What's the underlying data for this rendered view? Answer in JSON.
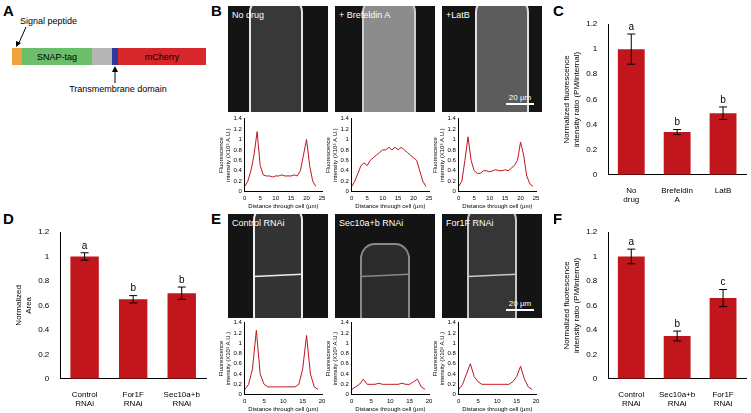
{
  "diagram": {
    "panel": "A",
    "labels": {
      "signal": "Signal peptide",
      "snap": "SNAP-tag",
      "tm": "Transmembrane domain",
      "mcherry": "mCherry"
    }
  },
  "micrographs": [
    {
      "panel": "B",
      "titles": [
        "No drug",
        "+ Brefeldin A",
        "+LatB"
      ],
      "scale_bar": "20 µm"
    },
    {
      "panel": "E",
      "titles": [
        "Control RNAi",
        "Sec10a+b RNAi",
        "For1F RNAi"
      ],
      "scale_bar": "20 µm"
    }
  ],
  "chart_data": [
    {
      "type": "line",
      "x_label": "Distance through cell (µm)",
      "y_label": "Fluorescence intensity (X10³ A.U.)",
      "x": [
        0,
        1,
        2,
        3,
        4,
        5,
        6,
        7,
        8,
        9,
        10,
        11,
        12,
        13,
        14,
        15,
        16,
        17,
        18,
        19,
        20,
        21,
        22,
        23
      ],
      "values": [
        0.1,
        0.2,
        0.4,
        0.7,
        1.15,
        0.5,
        0.32,
        0.3,
        0.3,
        0.28,
        0.3,
        0.3,
        0.32,
        0.3,
        0.3,
        0.3,
        0.32,
        0.3,
        0.4,
        0.7,
        1.0,
        0.5,
        0.2,
        0.1
      ],
      "xlim": [
        0,
        25
      ],
      "xticks": [
        0,
        5,
        10,
        15,
        20,
        25
      ],
      "ylim": [
        0,
        1.4
      ],
      "yticks": [
        0,
        0.2,
        0.4,
        0.6,
        0.8,
        1,
        1.2,
        1.4
      ],
      "color": "#c0161c",
      "grid": false
    },
    {
      "type": "line",
      "x_label": "Distance through cell (µm)",
      "y_label": "Fluorescence intensity (X10³ A.U.)",
      "x": [
        0,
        1,
        2,
        3,
        4,
        5,
        6,
        7,
        8,
        9,
        10,
        11,
        12,
        13,
        14,
        15,
        16,
        17,
        18,
        19,
        20,
        21,
        22,
        23,
        24
      ],
      "values": [
        0.1,
        0.2,
        0.35,
        0.5,
        0.55,
        0.5,
        0.6,
        0.65,
        0.7,
        0.75,
        0.8,
        0.8,
        0.85,
        0.8,
        0.85,
        0.8,
        0.85,
        0.8,
        0.75,
        0.7,
        0.65,
        0.6,
        0.4,
        0.2,
        0.1
      ],
      "xlim": [
        0,
        25
      ],
      "xticks": [
        0,
        5,
        10,
        15,
        20,
        25
      ],
      "ylim": [
        0,
        1.4
      ],
      "yticks": [
        0,
        0.2,
        0.4,
        0.6,
        0.8,
        1,
        1.2,
        1.4
      ],
      "color": "#c0161c",
      "grid": false
    },
    {
      "type": "line",
      "x_label": "Distance through cell (µm)",
      "y_label": "Fluorescence intensity (X10³ A.U.)",
      "x": [
        0,
        1,
        2,
        3,
        4,
        5,
        6,
        7,
        8,
        9,
        10,
        11,
        12,
        13,
        14,
        15,
        16,
        17,
        18,
        19,
        20,
        21,
        22,
        23,
        24
      ],
      "values": [
        0.1,
        0.2,
        0.6,
        1.05,
        0.6,
        0.4,
        0.35,
        0.35,
        0.4,
        0.4,
        0.38,
        0.4,
        0.42,
        0.4,
        0.4,
        0.42,
        0.4,
        0.45,
        0.5,
        0.6,
        0.95,
        0.7,
        0.3,
        0.15,
        0.1
      ],
      "xlim": [
        0,
        25
      ],
      "xticks": [
        0,
        5,
        10,
        15,
        20,
        25
      ],
      "ylim": [
        0,
        1.4
      ],
      "yticks": [
        0,
        0.2,
        0.4,
        0.6,
        0.8,
        1,
        1.2,
        1.4
      ],
      "color": "#c0161c",
      "grid": false
    },
    {
      "type": "bar",
      "panel": "C",
      "y_label": "Normalized fluorescence intensity ratio (PM/internal)",
      "categories": [
        "No drug",
        "Brefeldin A",
        "LatB"
      ],
      "values": [
        1.0,
        0.34,
        0.49
      ],
      "error": [
        0.12,
        0.02,
        0.05
      ],
      "significance": [
        "a",
        "b",
        "b"
      ],
      "ylim": [
        0,
        1.2
      ],
      "yticks": [
        0,
        0.2,
        0.4,
        0.6,
        0.8,
        1,
        1.2
      ],
      "color": "#c0161c",
      "grid": false
    },
    {
      "type": "bar",
      "panel": "D",
      "y_label": "Normalized Area",
      "categories": [
        "Control RNAi",
        "For1F RNAi",
        "Sec10a+b RNAi"
      ],
      "values": [
        1.0,
        0.65,
        0.7
      ],
      "error": [
        0.03,
        0.03,
        0.05
      ],
      "significance": [
        "a",
        "b",
        "b"
      ],
      "ylim": [
        0,
        1.2
      ],
      "yticks": [
        0,
        0.2,
        0.4,
        0.6,
        0.8,
        1,
        1.2
      ],
      "color": "#c0161c",
      "grid": false
    },
    {
      "type": "line",
      "x_label": "Distance through cell (µm)",
      "y_label": "Fluorescence intensity (X10³ A.U.)",
      "x": [
        0,
        1,
        2,
        3,
        4,
        5,
        6,
        7,
        8,
        9,
        10,
        11,
        12,
        13,
        14,
        15,
        16,
        17,
        18,
        19
      ],
      "values": [
        0.1,
        0.2,
        0.5,
        1.25,
        0.4,
        0.2,
        0.15,
        0.15,
        0.15,
        0.15,
        0.15,
        0.15,
        0.15,
        0.15,
        0.2,
        0.5,
        1.15,
        0.4,
        0.15,
        0.1
      ],
      "xlim": [
        0,
        20
      ],
      "xticks": [
        0,
        5,
        10,
        15,
        20
      ],
      "ylim": [
        0,
        1.4
      ],
      "yticks": [
        0,
        0.2,
        0.4,
        0.6,
        0.8,
        1,
        1.2,
        1.4
      ],
      "color": "#c0161c",
      "grid": false
    },
    {
      "type": "line",
      "x_label": "Distance through cell (µm)",
      "y_label": "Fluorescence intensity (X10³ A.U.)",
      "x": [
        0,
        1,
        2,
        3,
        4,
        5,
        6,
        7,
        8,
        9,
        10,
        11,
        12,
        13,
        14,
        15,
        16,
        17,
        18,
        19
      ],
      "values": [
        0.1,
        0.15,
        0.2,
        0.3,
        0.2,
        0.2,
        0.2,
        0.22,
        0.2,
        0.2,
        0.2,
        0.2,
        0.2,
        0.22,
        0.2,
        0.2,
        0.25,
        0.3,
        0.15,
        0.1
      ],
      "xlim": [
        0,
        20
      ],
      "xticks": [
        0,
        5,
        10,
        15,
        20
      ],
      "ylim": [
        0,
        1.4
      ],
      "yticks": [
        0,
        0.2,
        0.4,
        0.6,
        0.8,
        1,
        1.2,
        1.4
      ],
      "color": "#c0161c",
      "grid": false
    },
    {
      "type": "line",
      "x_label": "Distance through cell (µm)",
      "y_label": "Fluorescence intensity (X10³ A.U.)",
      "x": [
        0,
        1,
        2,
        3,
        4,
        5,
        6,
        7,
        8,
        9,
        10,
        11,
        12,
        13,
        14,
        15,
        16,
        17,
        18,
        19
      ],
      "values": [
        0.1,
        0.2,
        0.4,
        0.6,
        0.35,
        0.25,
        0.2,
        0.2,
        0.2,
        0.2,
        0.2,
        0.2,
        0.2,
        0.2,
        0.25,
        0.35,
        0.55,
        0.3,
        0.15,
        0.1
      ],
      "xlim": [
        0,
        20
      ],
      "xticks": [
        0,
        5,
        10,
        15,
        20
      ],
      "ylim": [
        0,
        1.4
      ],
      "yticks": [
        0,
        0.2,
        0.4,
        0.6,
        0.8,
        1,
        1.2,
        1.4
      ],
      "color": "#c0161c",
      "grid": false
    },
    {
      "type": "bar",
      "panel": "F",
      "y_label": "Normalized fluorescence intensity ratio (PM/internal)",
      "categories": [
        "Control RNAi",
        "Sec10a+b RNAi",
        "For1F RNAi"
      ],
      "values": [
        1.0,
        0.35,
        0.66
      ],
      "error": [
        0.06,
        0.04,
        0.07
      ],
      "significance": [
        "a",
        "b",
        "c"
      ],
      "ylim": [
        0,
        1.2
      ],
      "yticks": [
        0,
        0.2,
        0.4,
        0.6,
        0.8,
        1,
        1.2
      ],
      "color": "#c0161c",
      "grid": false
    }
  ]
}
